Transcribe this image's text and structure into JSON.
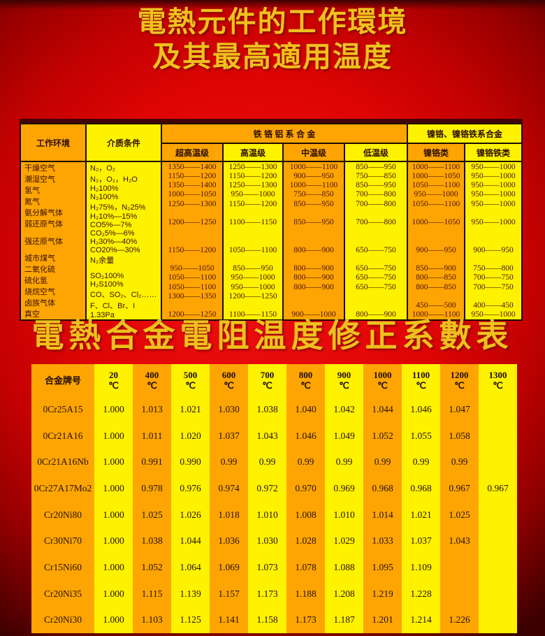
{
  "titles": {
    "line1": "電熱元件的工作環境",
    "line2": "及其最高適用温度",
    "title2": "電熱合金電阻温度修正系數表"
  },
  "colors": {
    "background_red": "#e30808",
    "background_edge": "#3a0000",
    "column_orange": "#ffa503",
    "column_yellow": "#fff200",
    "title_gold": "#eec11e",
    "grid_line": "#1c0c00",
    "text_dark": "#2b0e00"
  },
  "table1": {
    "header": {
      "environment": "工作环境",
      "medium": "介质条件",
      "group_fecral": "铁 铬 铝 系 合 金",
      "group_nicr": "镍铬、镍铬铁系合金",
      "sub_levels": [
        "超高温级",
        "高温级",
        "中温级",
        "低温级",
        "镍铬类",
        "镍铬铁类"
      ]
    },
    "rows": [
      {
        "env": "干燥空气",
        "medium": "N₂，O₂",
        "values": [
          "1350——1400",
          "1250——1300",
          "1000——1100",
          "850——950",
          "1000——1100",
          "950——1000"
        ]
      },
      {
        "env": "潮湿空气",
        "medium": "N₂，O₂，H₂O",
        "values": [
          "1150——1200",
          "1150——1200",
          "900——950",
          "750——850",
          "1000——1050",
          "950——1000"
        ]
      },
      {
        "env": "氢气",
        "medium": "H₂100%",
        "values": [
          "1350——1400",
          "1250——1300",
          "1000——1100",
          "850——950",
          "1050——1100",
          "950——1000"
        ]
      },
      {
        "env": "氮气",
        "medium": "N₂100%",
        "values": [
          "1000——1050",
          "950——1000",
          "750——850",
          "700——800",
          "950——1000",
          "950——1000"
        ]
      },
      {
        "env": "氨分解气体",
        "medium": "H₂75%，N₂25%",
        "values": [
          "1250——1300",
          "1150——1200",
          "850——950",
          "700——800",
          "1050——1100",
          "950——1000"
        ]
      },
      {
        "env": "弱还原气体",
        "medium": "H₂10%—15%",
        "values": [
          "",
          "",
          "",
          "",
          "",
          ""
        ]
      },
      {
        "env": "",
        "medium": "CO5%—7%",
        "values": [
          "1200——1250",
          "1100——1150",
          "850——950",
          "700——800",
          "1000——1050",
          "950——1000"
        ]
      },
      {
        "env": "",
        "medium": "CO₂5%—6%",
        "values": [
          "",
          "",
          "",
          "",
          "",
          ""
        ]
      },
      {
        "env": "强还原气体",
        "medium": "H₂30%—40%",
        "values": [
          "",
          "",
          "",
          "",
          "",
          ""
        ]
      },
      {
        "env": "",
        "medium": "CO20%—30%",
        "values": [
          "1150——1200",
          "1050——1100",
          "800——900",
          "650——750",
          "900——950",
          "900——950"
        ]
      },
      {
        "env": "",
        "medium": "N₂余量",
        "values": [
          "",
          "",
          "",
          "",
          "",
          ""
        ]
      },
      {
        "env": "城市煤气",
        "medium": "",
        "values": [
          "950——1050",
          "850——950",
          "800——900",
          "650——750",
          "850——900",
          "750——800"
        ]
      },
      {
        "env": "二氧化硫",
        "medium": "SO₂100%",
        "values": [
          "1050——1100",
          "950——1000",
          "800——900",
          "650——750",
          "800——850",
          "700——750"
        ]
      },
      {
        "env": "硫化氢",
        "medium": "H₂S100%",
        "values": [
          "1050——1100",
          "950——1000",
          "800——900",
          "650——750",
          "800——850",
          "700——750"
        ]
      },
      {
        "env": "烧烷空气",
        "medium": "CO、SO₂、Cl₂……",
        "values": [
          "1300——1350",
          "1200——1250",
          "",
          "",
          "",
          ""
        ]
      },
      {
        "env": "卤族气体",
        "medium": "F、Cl、Br、I",
        "values": [
          "",
          "",
          "",
          "",
          "450——500",
          "400——450"
        ]
      },
      {
        "env": "真空",
        "medium": "1.33Pa",
        "values": [
          "1200——1250",
          "1100——1150",
          "900——1000",
          "800——900",
          "1000——1100",
          "950——1000"
        ]
      }
    ]
  },
  "table2": {
    "name_header": "合金牌号",
    "degree_symbol": "℃",
    "temps": [
      "20",
      "400",
      "500",
      "600",
      "700",
      "800",
      "900",
      "1000",
      "1100",
      "1200",
      "1300"
    ],
    "rows": [
      {
        "name": "0Cr25A15",
        "values": [
          "1.000",
          "1.013",
          "1.021",
          "1.030",
          "1.038",
          "1.040",
          "1.042",
          "1.044",
          "1.046",
          "1.047",
          ""
        ]
      },
      {
        "name": "0Cr21A16",
        "values": [
          "1.000",
          "1.011",
          "1.020",
          "1.037",
          "1.043",
          "1.046",
          "1.049",
          "1.052",
          "1.055",
          "1.058",
          ""
        ]
      },
      {
        "name": "0Cr21A16Nb",
        "values": [
          "1.000",
          "0.991",
          "0.990",
          "0.99",
          "0.99",
          "0.99",
          "0.99",
          "0.99",
          "0.99",
          "0.99",
          ""
        ]
      },
      {
        "name": "0Cr27A17Mo2",
        "values": [
          "1.000",
          "0.978",
          "0.976",
          "0.974",
          "0.972",
          "0.970",
          "0.969",
          "0.968",
          "0.968",
          "0.967",
          "0.967"
        ]
      },
      {
        "name": "Cr20Ni80",
        "values": [
          "1.000",
          "1.025",
          "1.026",
          "1.018",
          "1.010",
          "1.008",
          "1.010",
          "1.014",
          "1.021",
          "1.025",
          ""
        ]
      },
      {
        "name": "Cr30Ni70",
        "values": [
          "1.000",
          "1.038",
          "1.044",
          "1.036",
          "1.030",
          "1.028",
          "1.029",
          "1.033",
          "1.037",
          "1.043",
          ""
        ]
      },
      {
        "name": "Cr15Ni60",
        "values": [
          "1.000",
          "1.052",
          "1.064",
          "1.069",
          "1.073",
          "1.078",
          "1.088",
          "1.095",
          "1.109",
          "",
          ""
        ]
      },
      {
        "name": "Cr20Ni35",
        "values": [
          "1.000",
          "1.115",
          "1.139",
          "1.157",
          "1.173",
          "1.188",
          "1.208",
          "1.219",
          "1.228",
          "",
          ""
        ]
      },
      {
        "name": "Cr20Ni30",
        "values": [
          "1.000",
          "1.103",
          "1.125",
          "1.141",
          "1.158",
          "1.173",
          "1.187",
          "1.201",
          "1.214",
          "1.226",
          ""
        ]
      }
    ]
  }
}
